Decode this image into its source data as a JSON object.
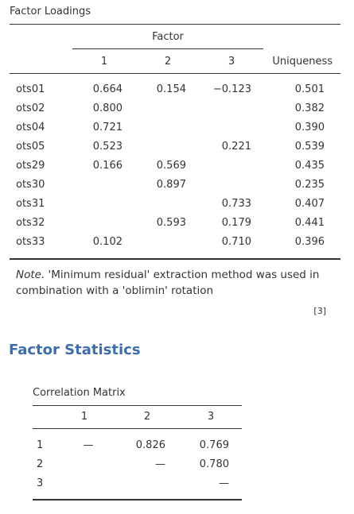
{
  "loadings": {
    "title": "Factor Loadings",
    "factor_header": "Factor",
    "columns": [
      "1",
      "2",
      "3"
    ],
    "uniqueness_header": "Uniqueness",
    "rows": [
      {
        "name": "ots01",
        "f1": "0.664",
        "f2": "0.154",
        "f3": "−0.123",
        "u": "0.501"
      },
      {
        "name": "ots02",
        "f1": "0.800",
        "f2": "",
        "f3": "",
        "u": "0.382"
      },
      {
        "name": "ots04",
        "f1": "0.721",
        "f2": "",
        "f3": "",
        "u": "0.390"
      },
      {
        "name": "ots05",
        "f1": "0.523",
        "f2": "",
        "f3": "0.221",
        "u": "0.539"
      },
      {
        "name": "ots29",
        "f1": "0.166",
        "f2": "0.569",
        "f3": "",
        "u": "0.435"
      },
      {
        "name": "ots30",
        "f1": "",
        "f2": "0.897",
        "f3": "",
        "u": "0.235"
      },
      {
        "name": "ots31",
        "f1": "",
        "f2": "",
        "f3": "0.733",
        "u": "0.407"
      },
      {
        "name": "ots32",
        "f1": "",
        "f2": "0.593",
        "f3": "0.179",
        "u": "0.441"
      },
      {
        "name": "ots33",
        "f1": "0.102",
        "f2": "",
        "f3": "0.710",
        "u": "0.396"
      }
    ],
    "note_label": "Note.",
    "note_line1": " 'Minimum residual' extraction method was used in",
    "note_line2": "combination with a 'oblimin' rotation",
    "reference": "[3]"
  },
  "factor_statistics": {
    "heading": "Factor Statistics",
    "correlation": {
      "title": "Correlation Matrix",
      "columns": [
        "1",
        "2",
        "3"
      ],
      "rows": [
        {
          "name": "1",
          "c1": "—",
          "c2": "0.826",
          "c3": "0.769"
        },
        {
          "name": "2",
          "c1": "",
          "c2": "—",
          "c3": "0.780"
        },
        {
          "name": "3",
          "c1": "",
          "c2": "",
          "c3": "—"
        }
      ]
    }
  }
}
